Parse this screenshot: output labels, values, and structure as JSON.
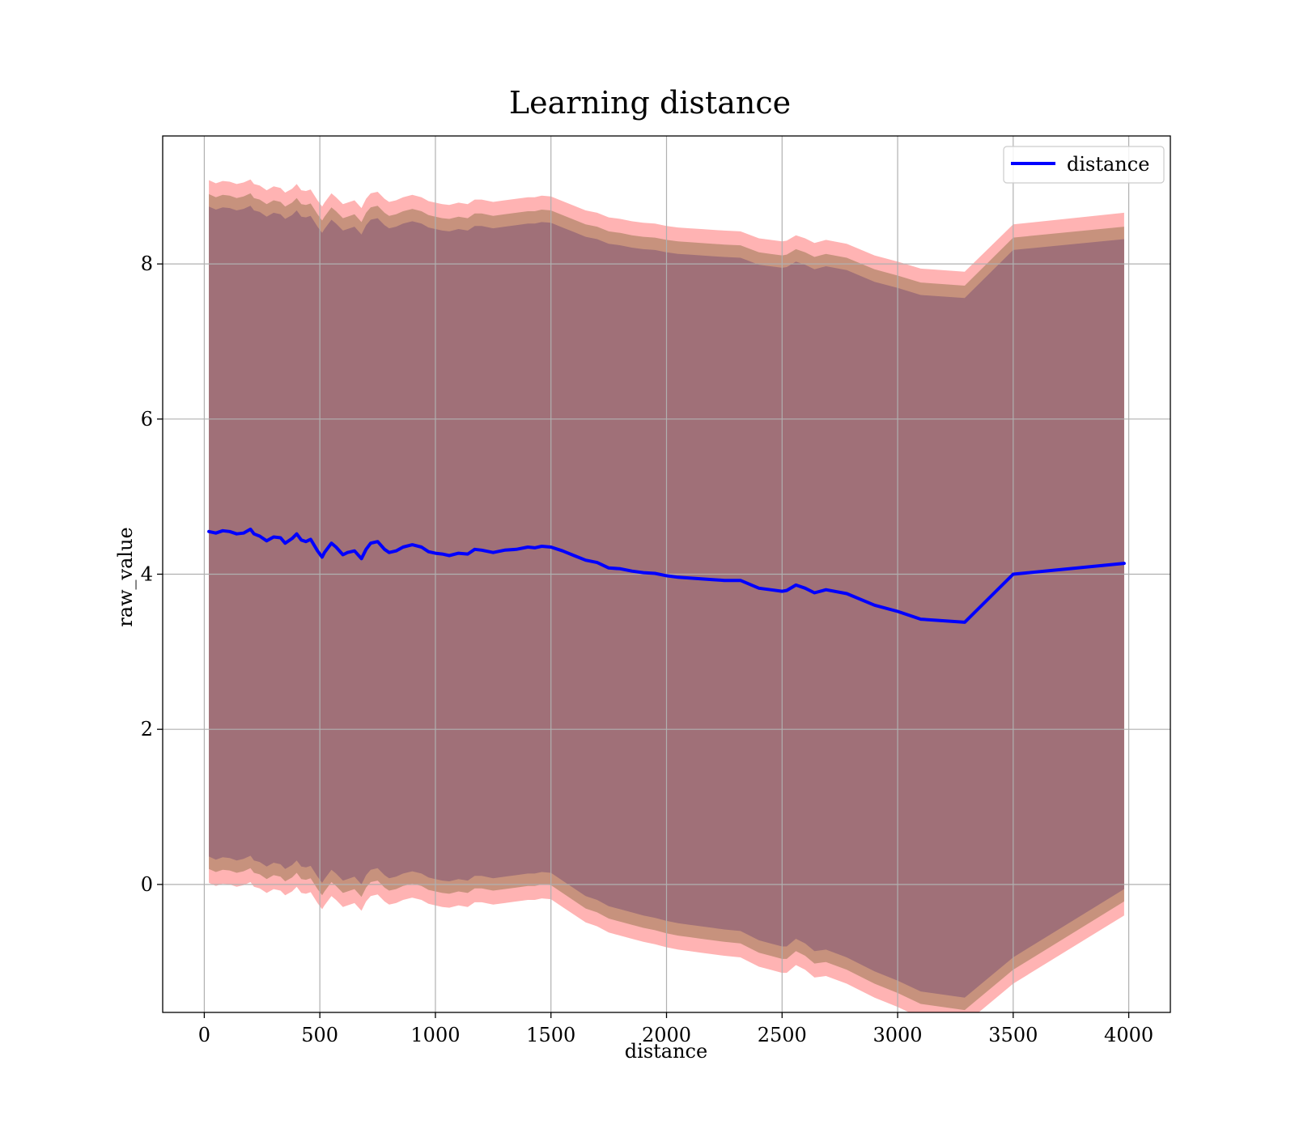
{
  "chart_data": {
    "type": "line",
    "title": "Learning distance",
    "xlabel": "distance",
    "ylabel": "raw_value",
    "xlim": [
      -180,
      4180
    ],
    "ylim": [
      -1.65,
      9.65
    ],
    "xticks": [
      0,
      500,
      1000,
      1500,
      2000,
      2500,
      3000,
      3500,
      4000
    ],
    "yticks": [
      0,
      2,
      4,
      6,
      8
    ],
    "grid": true,
    "legend_position": "top-right",
    "colors": {
      "line": "#0000ff",
      "band_outer": "#ff9999",
      "band_middle": "#c4907a",
      "band_inner": "#a07078",
      "grid": "#b0b0b0"
    },
    "series": [
      {
        "name": "distance",
        "x": [
          20,
          50,
          80,
          110,
          140,
          170,
          200,
          215,
          240,
          270,
          300,
          330,
          350,
          380,
          400,
          420,
          440,
          460,
          490,
          510,
          520,
          550,
          570,
          600,
          620,
          650,
          680,
          700,
          720,
          750,
          780,
          800,
          830,
          860,
          900,
          940,
          970,
          1000,
          1030,
          1060,
          1100,
          1140,
          1170,
          1200,
          1250,
          1300,
          1350,
          1400,
          1430,
          1460,
          1500,
          1550,
          1600,
          1650,
          1700,
          1750,
          1800,
          1850,
          1900,
          1950,
          2000,
          2050,
          2100,
          2150,
          2200,
          2250,
          2320,
          2400,
          2450,
          2500,
          2520,
          2560,
          2600,
          2640,
          2690,
          2780,
          2900,
          3000,
          3100,
          3290,
          3500,
          3980
        ],
        "mean": [
          4.55,
          4.53,
          4.56,
          4.55,
          4.52,
          4.53,
          4.58,
          4.52,
          4.49,
          4.43,
          4.48,
          4.47,
          4.4,
          4.46,
          4.52,
          4.44,
          4.42,
          4.45,
          4.3,
          4.22,
          4.28,
          4.4,
          4.35,
          4.25,
          4.28,
          4.3,
          4.2,
          4.32,
          4.4,
          4.42,
          4.32,
          4.28,
          4.3,
          4.35,
          4.38,
          4.35,
          4.29,
          4.27,
          4.26,
          4.24,
          4.27,
          4.26,
          4.32,
          4.31,
          4.28,
          4.31,
          4.32,
          4.35,
          4.34,
          4.36,
          4.35,
          4.3,
          4.24,
          4.18,
          4.15,
          4.08,
          4.07,
          4.04,
          4.02,
          4.01,
          3.98,
          3.96,
          3.95,
          3.94,
          3.93,
          3.92,
          3.92,
          3.82,
          3.8,
          3.78,
          3.79,
          3.86,
          3.82,
          3.76,
          3.8,
          3.75,
          3.6,
          3.52,
          3.42,
          3.38,
          4.0,
          4.14
        ],
        "upper_outer": [
          9.08,
          9.04,
          9.07,
          9.06,
          9.03,
          9.05,
          9.09,
          9.03,
          9.01,
          8.95,
          9.0,
          8.98,
          8.92,
          8.97,
          9.03,
          8.95,
          8.94,
          8.96,
          8.82,
          8.74,
          8.79,
          8.91,
          8.86,
          8.77,
          8.79,
          8.82,
          8.72,
          8.84,
          8.91,
          8.93,
          8.84,
          8.8,
          8.82,
          8.86,
          8.89,
          8.86,
          8.81,
          8.79,
          8.77,
          8.76,
          8.79,
          8.77,
          8.83,
          8.83,
          8.8,
          8.82,
          8.84,
          8.86,
          8.86,
          8.88,
          8.87,
          8.81,
          8.75,
          8.69,
          8.66,
          8.6,
          8.58,
          8.55,
          8.53,
          8.52,
          8.49,
          8.47,
          8.46,
          8.45,
          8.44,
          8.43,
          8.42,
          8.33,
          8.31,
          8.29,
          8.3,
          8.37,
          8.33,
          8.27,
          8.31,
          8.26,
          8.11,
          8.03,
          7.94,
          7.9,
          8.51,
          8.66
        ],
        "upper_middle": [
          8.9,
          8.86,
          8.89,
          8.88,
          8.85,
          8.87,
          8.91,
          8.85,
          8.83,
          8.77,
          8.82,
          8.8,
          8.74,
          8.79,
          8.85,
          8.77,
          8.76,
          8.78,
          8.64,
          8.56,
          8.61,
          8.73,
          8.68,
          8.59,
          8.61,
          8.64,
          8.54,
          8.66,
          8.73,
          8.75,
          8.66,
          8.62,
          8.64,
          8.68,
          8.71,
          8.68,
          8.63,
          8.61,
          8.59,
          8.58,
          8.61,
          8.59,
          8.65,
          8.65,
          8.62,
          8.64,
          8.66,
          8.68,
          8.68,
          8.7,
          8.69,
          8.63,
          8.57,
          8.51,
          8.48,
          8.42,
          8.4,
          8.37,
          8.35,
          8.34,
          8.31,
          8.29,
          8.28,
          8.27,
          8.26,
          8.25,
          8.24,
          8.15,
          8.13,
          8.11,
          8.12,
          8.19,
          8.15,
          8.09,
          8.13,
          8.08,
          7.93,
          7.85,
          7.76,
          7.72,
          8.34,
          8.48
        ],
        "upper_inner": [
          8.74,
          8.7,
          8.73,
          8.72,
          8.69,
          8.71,
          8.75,
          8.69,
          8.67,
          8.61,
          8.66,
          8.64,
          8.58,
          8.63,
          8.69,
          8.61,
          8.6,
          8.62,
          8.48,
          8.4,
          8.45,
          8.57,
          8.52,
          8.43,
          8.45,
          8.48,
          8.38,
          8.5,
          8.57,
          8.59,
          8.5,
          8.46,
          8.48,
          8.52,
          8.55,
          8.52,
          8.47,
          8.45,
          8.43,
          8.42,
          8.45,
          8.43,
          8.49,
          8.49,
          8.46,
          8.48,
          8.5,
          8.52,
          8.52,
          8.54,
          8.53,
          8.47,
          8.41,
          8.35,
          8.32,
          8.26,
          8.24,
          8.21,
          8.19,
          8.18,
          8.15,
          8.13,
          8.12,
          8.11,
          8.1,
          8.09,
          8.08,
          7.99,
          7.97,
          7.95,
          7.96,
          8.03,
          7.99,
          7.93,
          7.97,
          7.92,
          7.77,
          7.69,
          7.6,
          7.56,
          8.18,
          8.32
        ],
        "lower_inner": [
          0.36,
          0.32,
          0.35,
          0.34,
          0.31,
          0.33,
          0.37,
          0.31,
          0.29,
          0.23,
          0.28,
          0.26,
          0.2,
          0.25,
          0.31,
          0.23,
          0.22,
          0.24,
          0.1,
          0.02,
          0.07,
          0.19,
          0.14,
          0.05,
          0.07,
          0.1,
          0.0,
          0.12,
          0.19,
          0.21,
          0.12,
          0.08,
          0.1,
          0.14,
          0.17,
          0.14,
          0.09,
          0.07,
          0.05,
          0.04,
          0.07,
          0.05,
          0.11,
          0.11,
          0.08,
          0.1,
          0.12,
          0.14,
          0.14,
          0.16,
          0.15,
          0.05,
          -0.05,
          -0.15,
          -0.2,
          -0.28,
          -0.32,
          -0.36,
          -0.4,
          -0.43,
          -0.47,
          -0.5,
          -0.52,
          -0.54,
          -0.56,
          -0.58,
          -0.6,
          -0.72,
          -0.76,
          -0.8,
          -0.8,
          -0.7,
          -0.76,
          -0.86,
          -0.84,
          -0.94,
          -1.12,
          -1.24,
          -1.38,
          -1.46,
          -0.94,
          -0.06
        ],
        "lower_middle": [
          0.2,
          0.16,
          0.19,
          0.18,
          0.15,
          0.17,
          0.21,
          0.15,
          0.13,
          0.07,
          0.12,
          0.1,
          0.04,
          0.09,
          0.15,
          0.07,
          0.06,
          0.08,
          -0.06,
          -0.14,
          -0.09,
          0.03,
          -0.02,
          -0.11,
          -0.09,
          -0.06,
          -0.16,
          -0.04,
          0.03,
          0.05,
          -0.04,
          -0.08,
          -0.06,
          -0.02,
          0.01,
          -0.02,
          -0.07,
          -0.09,
          -0.11,
          -0.12,
          -0.09,
          -0.11,
          -0.05,
          -0.05,
          -0.08,
          -0.06,
          -0.04,
          -0.02,
          -0.02,
          0.0,
          -0.01,
          -0.11,
          -0.21,
          -0.31,
          -0.36,
          -0.44,
          -0.48,
          -0.52,
          -0.56,
          -0.59,
          -0.63,
          -0.66,
          -0.68,
          -0.7,
          -0.72,
          -0.74,
          -0.76,
          -0.88,
          -0.92,
          -0.96,
          -0.96,
          -0.86,
          -0.92,
          -1.02,
          -1.0,
          -1.1,
          -1.28,
          -1.4,
          -1.54,
          -1.62,
          -1.1,
          -0.22
        ],
        "lower_outer": [
          0.02,
          -0.02,
          0.01,
          0.0,
          -0.03,
          -0.01,
          0.03,
          -0.03,
          -0.05,
          -0.11,
          -0.06,
          -0.08,
          -0.14,
          -0.09,
          -0.03,
          -0.11,
          -0.12,
          -0.1,
          -0.24,
          -0.32,
          -0.27,
          -0.15,
          -0.2,
          -0.29,
          -0.27,
          -0.24,
          -0.34,
          -0.22,
          -0.15,
          -0.13,
          -0.22,
          -0.26,
          -0.24,
          -0.2,
          -0.17,
          -0.2,
          -0.25,
          -0.27,
          -0.29,
          -0.3,
          -0.27,
          -0.29,
          -0.23,
          -0.23,
          -0.26,
          -0.24,
          -0.22,
          -0.2,
          -0.2,
          -0.18,
          -0.19,
          -0.29,
          -0.39,
          -0.49,
          -0.54,
          -0.62,
          -0.66,
          -0.7,
          -0.74,
          -0.77,
          -0.81,
          -0.84,
          -0.86,
          -0.88,
          -0.9,
          -0.92,
          -0.94,
          -1.06,
          -1.1,
          -1.14,
          -1.14,
          -1.04,
          -1.1,
          -1.2,
          -1.18,
          -1.28,
          -1.46,
          -1.58,
          -1.72,
          -1.8,
          -1.28,
          -0.4
        ]
      }
    ]
  }
}
